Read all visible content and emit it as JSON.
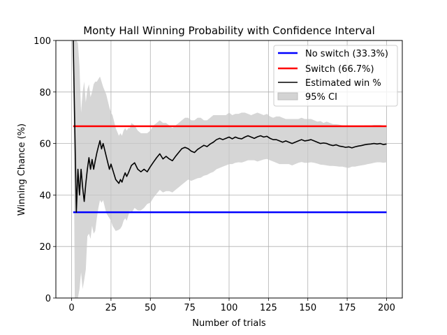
{
  "chart_data": {
    "type": "line",
    "title": "Monty Hall Winning Probability with Confidence Interval",
    "xlabel": "Number of trials",
    "ylabel": "Winning Chance (%)",
    "xlim": [
      -10,
      210
    ],
    "ylim": [
      0,
      100
    ],
    "xticks": [
      0,
      25,
      50,
      75,
      100,
      125,
      150,
      175,
      200
    ],
    "yticks": [
      0,
      20,
      40,
      60,
      80,
      100
    ],
    "grid": true,
    "legend_position": "top-right",
    "colors": {
      "no_switch": "#0000ff",
      "switch": "#ff0000",
      "estimate": "#000000",
      "ci": "#c8c8c8"
    },
    "series": [
      {
        "name": "No switch (33.3%)",
        "kind": "hline",
        "value": 33.3,
        "x_range": [
          1,
          200
        ]
      },
      {
        "name": "Switch (66.7%)",
        "kind": "hline",
        "value": 66.7,
        "x_range": [
          1,
          200
        ]
      },
      {
        "name": "Estimated win %",
        "kind": "line",
        "x": [
          1,
          2,
          3,
          4,
          5,
          6,
          7,
          8,
          9,
          10,
          11,
          12,
          13,
          14,
          15,
          16,
          17,
          18,
          19,
          20,
          22,
          24,
          25,
          26,
          28,
          30,
          31,
          32,
          33,
          34,
          35,
          36,
          37,
          38,
          40,
          42,
          44,
          46,
          48,
          50,
          52,
          54,
          56,
          58,
          60,
          62,
          64,
          66,
          68,
          70,
          72,
          74,
          76,
          78,
          80,
          82,
          84,
          86,
          88,
          90,
          92,
          94,
          96,
          98,
          100,
          102,
          104,
          106,
          108,
          110,
          112,
          114,
          116,
          118,
          120,
          122,
          124,
          126,
          128,
          130,
          132,
          134,
          136,
          138,
          140,
          142,
          144,
          146,
          148,
          150,
          152,
          154,
          156,
          158,
          160,
          162,
          164,
          166,
          168,
          170,
          172,
          174,
          176,
          178,
          180,
          182,
          184,
          186,
          188,
          190,
          192,
          194,
          196,
          198,
          200
        ],
        "values": [
          100,
          66.7,
          33.3,
          50,
          40,
          50,
          42.9,
          37.5,
          44.4,
          50,
          54.5,
          50,
          53.8,
          50,
          53.3,
          56.3,
          58.8,
          61.1,
          57.9,
          60,
          55,
          50,
          52,
          50,
          46,
          44.5,
          46,
          45,
          47,
          48.6,
          47.2,
          48.5,
          50,
          51.5,
          52.5,
          50,
          49,
          50,
          49,
          51,
          52.8,
          54.5,
          56,
          54,
          55,
          54,
          53.3,
          55,
          56.5,
          58,
          58.5,
          58,
          57,
          56.5,
          57.7,
          58.5,
          59.3,
          58.8,
          59.8,
          60.5,
          61.5,
          62,
          61.5,
          62,
          62.5,
          61.8,
          62.5,
          62,
          61.8,
          62.5,
          63,
          62.5,
          62,
          62.6,
          63,
          62.5,
          62.8,
          62,
          61.5,
          61.5,
          61,
          60.5,
          61,
          60.5,
          60,
          60.5,
          61,
          61.5,
          61,
          61.2,
          61.5,
          61,
          60.5,
          60,
          60.2,
          60,
          59.5,
          59.2,
          59.5,
          59,
          58.8,
          58.5,
          58.7,
          58.3,
          58.7,
          59,
          59.2,
          59.5,
          59.7,
          59.8,
          60,
          59.8,
          60,
          59.6,
          59.8
        ]
      },
      {
        "name": "95% CI",
        "kind": "band",
        "x": [
          1,
          2,
          3,
          4,
          5,
          6,
          7,
          8,
          9,
          10,
          11,
          12,
          13,
          14,
          15,
          16,
          17,
          18,
          19,
          20,
          22,
          24,
          25,
          26,
          28,
          30,
          31,
          32,
          33,
          34,
          35,
          36,
          37,
          38,
          40,
          42,
          44,
          46,
          48,
          50,
          52,
          54,
          56,
          58,
          60,
          62,
          64,
          66,
          68,
          70,
          72,
          74,
          76,
          78,
          80,
          82,
          84,
          86,
          88,
          90,
          92,
          94,
          96,
          98,
          100,
          102,
          104,
          106,
          108,
          110,
          112,
          114,
          116,
          118,
          120,
          122,
          124,
          126,
          128,
          130,
          132,
          134,
          136,
          138,
          140,
          142,
          144,
          146,
          148,
          150,
          152,
          154,
          156,
          158,
          160,
          162,
          164,
          166,
          168,
          170,
          172,
          174,
          176,
          178,
          180,
          182,
          184,
          186,
          188,
          190,
          192,
          194,
          196,
          198,
          200
        ],
        "lower": [
          100,
          0,
          0,
          0,
          3.5,
          10,
          3.5,
          7,
          11,
          24,
          25,
          23,
          28,
          25,
          26,
          31,
          35,
          38,
          37,
          38,
          33,
          31,
          30,
          28,
          26,
          26.5,
          27,
          28,
          30,
          31,
          30,
          32,
          34,
          33,
          35,
          34,
          34,
          35,
          36.5,
          37,
          39,
          40.5,
          42,
          41,
          41.5,
          41.5,
          41,
          42,
          43,
          44,
          45,
          46,
          45.5,
          46,
          46.5,
          46.7,
          47.5,
          47.8,
          48.5,
          49,
          50,
          50.5,
          51,
          51.5,
          52,
          52,
          52.5,
          52.7,
          52.6,
          53,
          53.5,
          53.5,
          53.5,
          53,
          53.4,
          53.8,
          54,
          53.5,
          53,
          52.5,
          52,
          52,
          52,
          52,
          51.5,
          52,
          52.5,
          52.8,
          52.5,
          52.5,
          52.7,
          52.5,
          52.2,
          51.8,
          51.7,
          51.5,
          51.3,
          51.3,
          51.2,
          51,
          51,
          50.7,
          50.5,
          51,
          51,
          51.3,
          51.5,
          51.7,
          52,
          52.2,
          52.5,
          52.7,
          52.7,
          52.5,
          52.7
        ],
        "upper": [
          100,
          100,
          100,
          99,
          90,
          72,
          80,
          84,
          76,
          81,
          83,
          78,
          80,
          83,
          84,
          84,
          85,
          86,
          84,
          82,
          79,
          74,
          72,
          71,
          66,
          63,
          64,
          63,
          65,
          66,
          65,
          66,
          66,
          68,
          67,
          65,
          64,
          64,
          64,
          65,
          67,
          68,
          69,
          68,
          68,
          67,
          66,
          67,
          68,
          69,
          70,
          70,
          69,
          69,
          70,
          70,
          69,
          69,
          70,
          71,
          71,
          71,
          71,
          71,
          72,
          71,
          71.5,
          71.5,
          72,
          72,
          71.5,
          71,
          71.5,
          72,
          71.5,
          71,
          71.5,
          70.5,
          70,
          70.5,
          70.5,
          70,
          69.5,
          69.5,
          69.5,
          69.5,
          69.5,
          70,
          69.5,
          69.5,
          69.5,
          69,
          68.5,
          68.7,
          68,
          68.5,
          68,
          67.5,
          67.5,
          67.3,
          67,
          66.8,
          66.5,
          66.4,
          66.5,
          66.7,
          66.7,
          67,
          67,
          67,
          67.2,
          67.2,
          67.2,
          67,
          67
        ]
      }
    ]
  }
}
